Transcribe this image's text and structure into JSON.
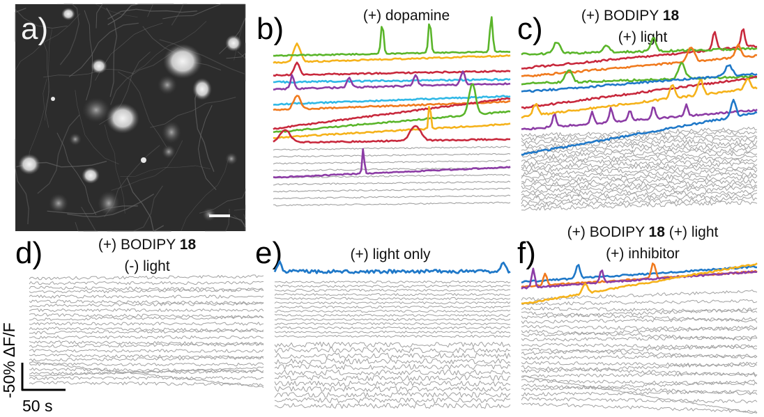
{
  "panels": {
    "a": {
      "label": "a)"
    },
    "b": {
      "label": "b)",
      "title1": "(+) dopamine"
    },
    "c": {
      "label": "c)",
      "title1_pre": "(+) BODIPY ",
      "title1_bold": "18",
      "title2": "(+) light"
    },
    "d": {
      "label": "d)",
      "title1_pre": "(+) BODIPY ",
      "title1_bold": "18",
      "title2": "(-) light"
    },
    "e": {
      "label": "e)",
      "title1": "(+) light only"
    },
    "f": {
      "label": "f)",
      "title1_pre": "(+) BODIPY ",
      "title1_bold": "18",
      "title1_post": " (+) light",
      "title2": "(+) inhibitor"
    }
  },
  "scale_bar": {
    "y_label": "-50% ΔF/F",
    "x_label": "50 s"
  },
  "colors": {
    "gray": "#a0a0a0",
    "green": "#5ab52a",
    "orange": "#f07a1e",
    "yellow": "#f5b21a",
    "red": "#c8283c",
    "purple": "#8c3ca5",
    "cyan": "#30b8e6",
    "blue": "#1f78c8"
  }
}
